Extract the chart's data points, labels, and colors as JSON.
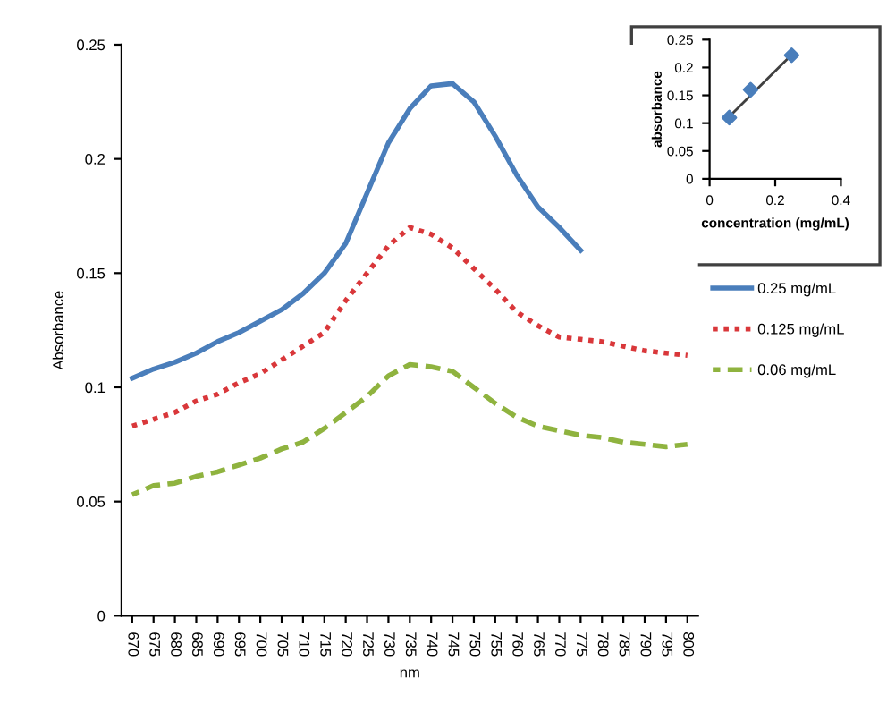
{
  "chart_data": [
    {
      "type": "line",
      "xlabel": "nm",
      "ylabel": "Absorbance",
      "categories": [
        "670",
        "675",
        "680",
        "685",
        "690",
        "695",
        "700",
        "705",
        "710",
        "715",
        "720",
        "725",
        "730",
        "735",
        "740",
        "745",
        "750",
        "755",
        "760",
        "765",
        "770",
        "775",
        "780",
        "785",
        "790",
        "795",
        "800"
      ],
      "series": [
        {
          "name": "0.25 mg/mL",
          "color": "#4a7ebb",
          "line_style": "solid",
          "values": [
            0.104,
            0.108,
            0.111,
            0.115,
            0.12,
            0.124,
            0.129,
            0.134,
            0.141,
            0.15,
            0.163,
            0.185,
            0.207,
            0.222,
            0.232,
            0.233,
            0.225,
            0.21,
            0.193,
            0.179,
            0.17,
            0.16,
            null,
            null,
            null,
            null,
            null
          ]
        },
        {
          "name": "0.125 mg/mL",
          "color": "#d9373a",
          "line_style": "dotted",
          "values": [
            0.083,
            0.086,
            0.089,
            0.094,
            0.097,
            0.102,
            0.106,
            0.112,
            0.118,
            0.124,
            0.138,
            0.15,
            0.162,
            0.17,
            0.167,
            0.161,
            0.152,
            0.143,
            0.133,
            0.127,
            0.122,
            0.121,
            0.12,
            0.118,
            0.116,
            0.115,
            0.114
          ]
        },
        {
          "name": "0.06 mg/mL",
          "color": "#8fb33f",
          "line_style": "dashed",
          "values": [
            0.053,
            0.057,
            0.058,
            0.061,
            0.063,
            0.066,
            0.069,
            0.073,
            0.076,
            0.082,
            0.089,
            0.096,
            0.105,
            0.11,
            0.109,
            0.107,
            0.1,
            0.093,
            0.087,
            0.083,
            0.081,
            0.079,
            0.078,
            0.076,
            0.075,
            0.074,
            0.075
          ]
        }
      ],
      "ylim": [
        0,
        0.25
      ],
      "yticks": [
        0,
        0.05,
        0.1,
        0.15,
        0.2,
        0.25
      ],
      "marker": "none",
      "grid": false,
      "legend": "right"
    },
    {
      "type": "scatter",
      "xlabel": "concentration (mg/mL)",
      "ylabel": "absorbance",
      "series": [
        {
          "type": "scatter",
          "color": "#4a7ebb",
          "marker": "diamond",
          "x": [
            0.06,
            0.125,
            0.25
          ],
          "values": [
            0.11,
            0.16,
            0.222
          ]
        },
        {
          "type": "line",
          "color": "#404040",
          "marker": "none",
          "x": [
            0.06,
            0.25
          ],
          "values": [
            0.112,
            0.223
          ]
        }
      ],
      "xlim": [
        0,
        0.4
      ],
      "xticks": [
        0,
        0.2,
        0.4
      ],
      "ylim": [
        0,
        0.25
      ],
      "yticks": [
        0,
        0.05,
        0.1,
        0.15,
        0.2,
        0.25
      ],
      "grid": false,
      "legend": false
    }
  ]
}
